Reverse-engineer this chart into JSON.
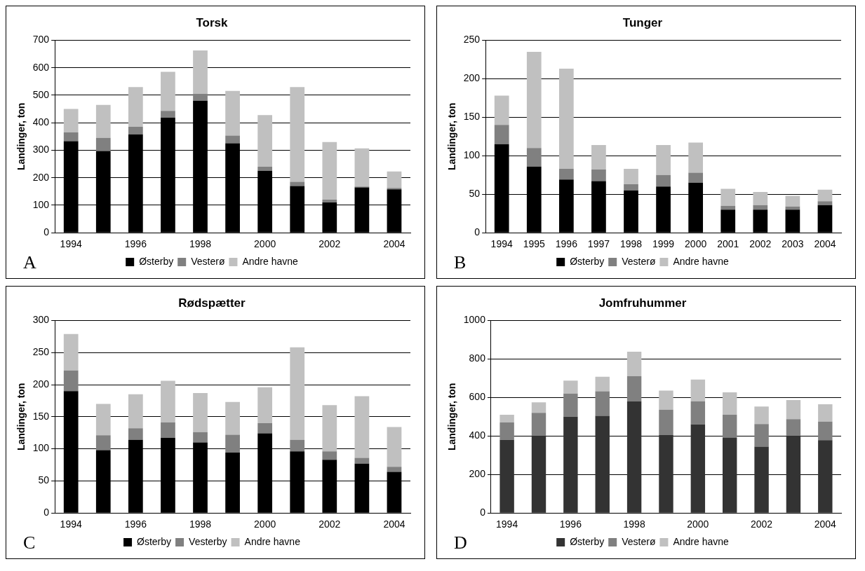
{
  "chart_data": [
    {
      "type": "bar",
      "title": "Torsk",
      "ylabel": "Landinger, ton",
      "categories": [
        "1994",
        null,
        "1996",
        null,
        "1998",
        null,
        "2000",
        null,
        "2002",
        null,
        "2004"
      ],
      "stacked": true,
      "ylim": [
        0,
        700
      ],
      "yticks": [
        0,
        100,
        200,
        300,
        400,
        500,
        600,
        700
      ],
      "grid": "y",
      "legend": "bottom",
      "annotations": [
        "A"
      ],
      "series": [
        {
          "name": "Østerby",
          "color": "#000000",
          "values": [
            333,
            297,
            358,
            418,
            480,
            325,
            225,
            170,
            110,
            165,
            158
          ]
        },
        {
          "name": "Vesterø",
          "color": "#808080",
          "values": [
            32,
            48,
            27,
            25,
            25,
            28,
            15,
            15,
            10,
            3,
            5
          ]
        },
        {
          "name": "Andre havne",
          "color": "#c0c0c0",
          "values": [
            85,
            120,
            145,
            142,
            158,
            163,
            188,
            345,
            210,
            139,
            60
          ]
        }
      ]
    },
    {
      "type": "bar",
      "title": "Tunger",
      "ylabel": "Landinger, ton",
      "categories": [
        "1994",
        "1995",
        "1996",
        "1997",
        "1998",
        "1999",
        "2000",
        "2001",
        "2002",
        "2003",
        "2004"
      ],
      "stacked": true,
      "ylim": [
        0,
        250
      ],
      "yticks": [
        0,
        50,
        100,
        150,
        200,
        250
      ],
      "grid": "y",
      "legend": "bottom",
      "annotations": [
        "B"
      ],
      "series": [
        {
          "name": "Østerby",
          "color": "#000000",
          "values": [
            115,
            86,
            69,
            67,
            55,
            60,
            65,
            30,
            30,
            30,
            36
          ]
        },
        {
          "name": "Vesterø",
          "color": "#808080",
          "values": [
            25,
            24,
            14,
            15,
            8,
            15,
            13,
            5,
            6,
            4,
            5
          ]
        },
        {
          "name": "Andre havne",
          "color": "#c0c0c0",
          "values": [
            38,
            125,
            130,
            32,
            20,
            39,
            39,
            22,
            17,
            14,
            15
          ]
        }
      ]
    },
    {
      "type": "bar",
      "title": "Rødspætter",
      "ylabel": "Landinger, ton",
      "categories": [
        "1994",
        null,
        "1996",
        null,
        "1998",
        null,
        "2000",
        null,
        "2002",
        null,
        "2004"
      ],
      "stacked": true,
      "ylim": [
        0,
        300
      ],
      "yticks": [
        0,
        50,
        100,
        150,
        200,
        250,
        300
      ],
      "grid": "y",
      "legend": "bottom",
      "annotations": [
        "C"
      ],
      "series": [
        {
          "name": "Østerby",
          "color": "#000000",
          "values": [
            190,
            98,
            114,
            117,
            110,
            94,
            124,
            96,
            83,
            77,
            64
          ]
        },
        {
          "name": "Vesterby",
          "color": "#808080",
          "values": [
            32,
            23,
            18,
            24,
            16,
            28,
            16,
            18,
            13,
            9,
            8
          ]
        },
        {
          "name": "Andre havne",
          "color": "#c0c0c0",
          "values": [
            57,
            49,
            53,
            65,
            61,
            51,
            56,
            144,
            72,
            96,
            62
          ]
        }
      ]
    },
    {
      "type": "bar",
      "title": "Jomfruhummer",
      "ylabel": "Landinger, ton",
      "categories": [
        "1994",
        null,
        "1996",
        null,
        "1998",
        null,
        "2000",
        null,
        "2002",
        null,
        "2004"
      ],
      "stacked": true,
      "ylim": [
        0,
        1000
      ],
      "yticks": [
        0,
        200,
        400,
        600,
        800,
        1000
      ],
      "grid": "y",
      "legend": "bottom",
      "annotations": [
        "D"
      ],
      "series": [
        {
          "name": "Østerby",
          "color": "#333333",
          "values": [
            380,
            400,
            500,
            505,
            580,
            405,
            460,
            392,
            345,
            400,
            378
          ]
        },
        {
          "name": "Vesterø",
          "color": "#808080",
          "values": [
            90,
            120,
            120,
            127,
            130,
            132,
            120,
            118,
            117,
            87,
            97
          ]
        },
        {
          "name": "Andre havne",
          "color": "#c0c0c0",
          "values": [
            40,
            55,
            68,
            76,
            128,
            99,
            113,
            117,
            91,
            100,
            90
          ]
        }
      ]
    }
  ]
}
